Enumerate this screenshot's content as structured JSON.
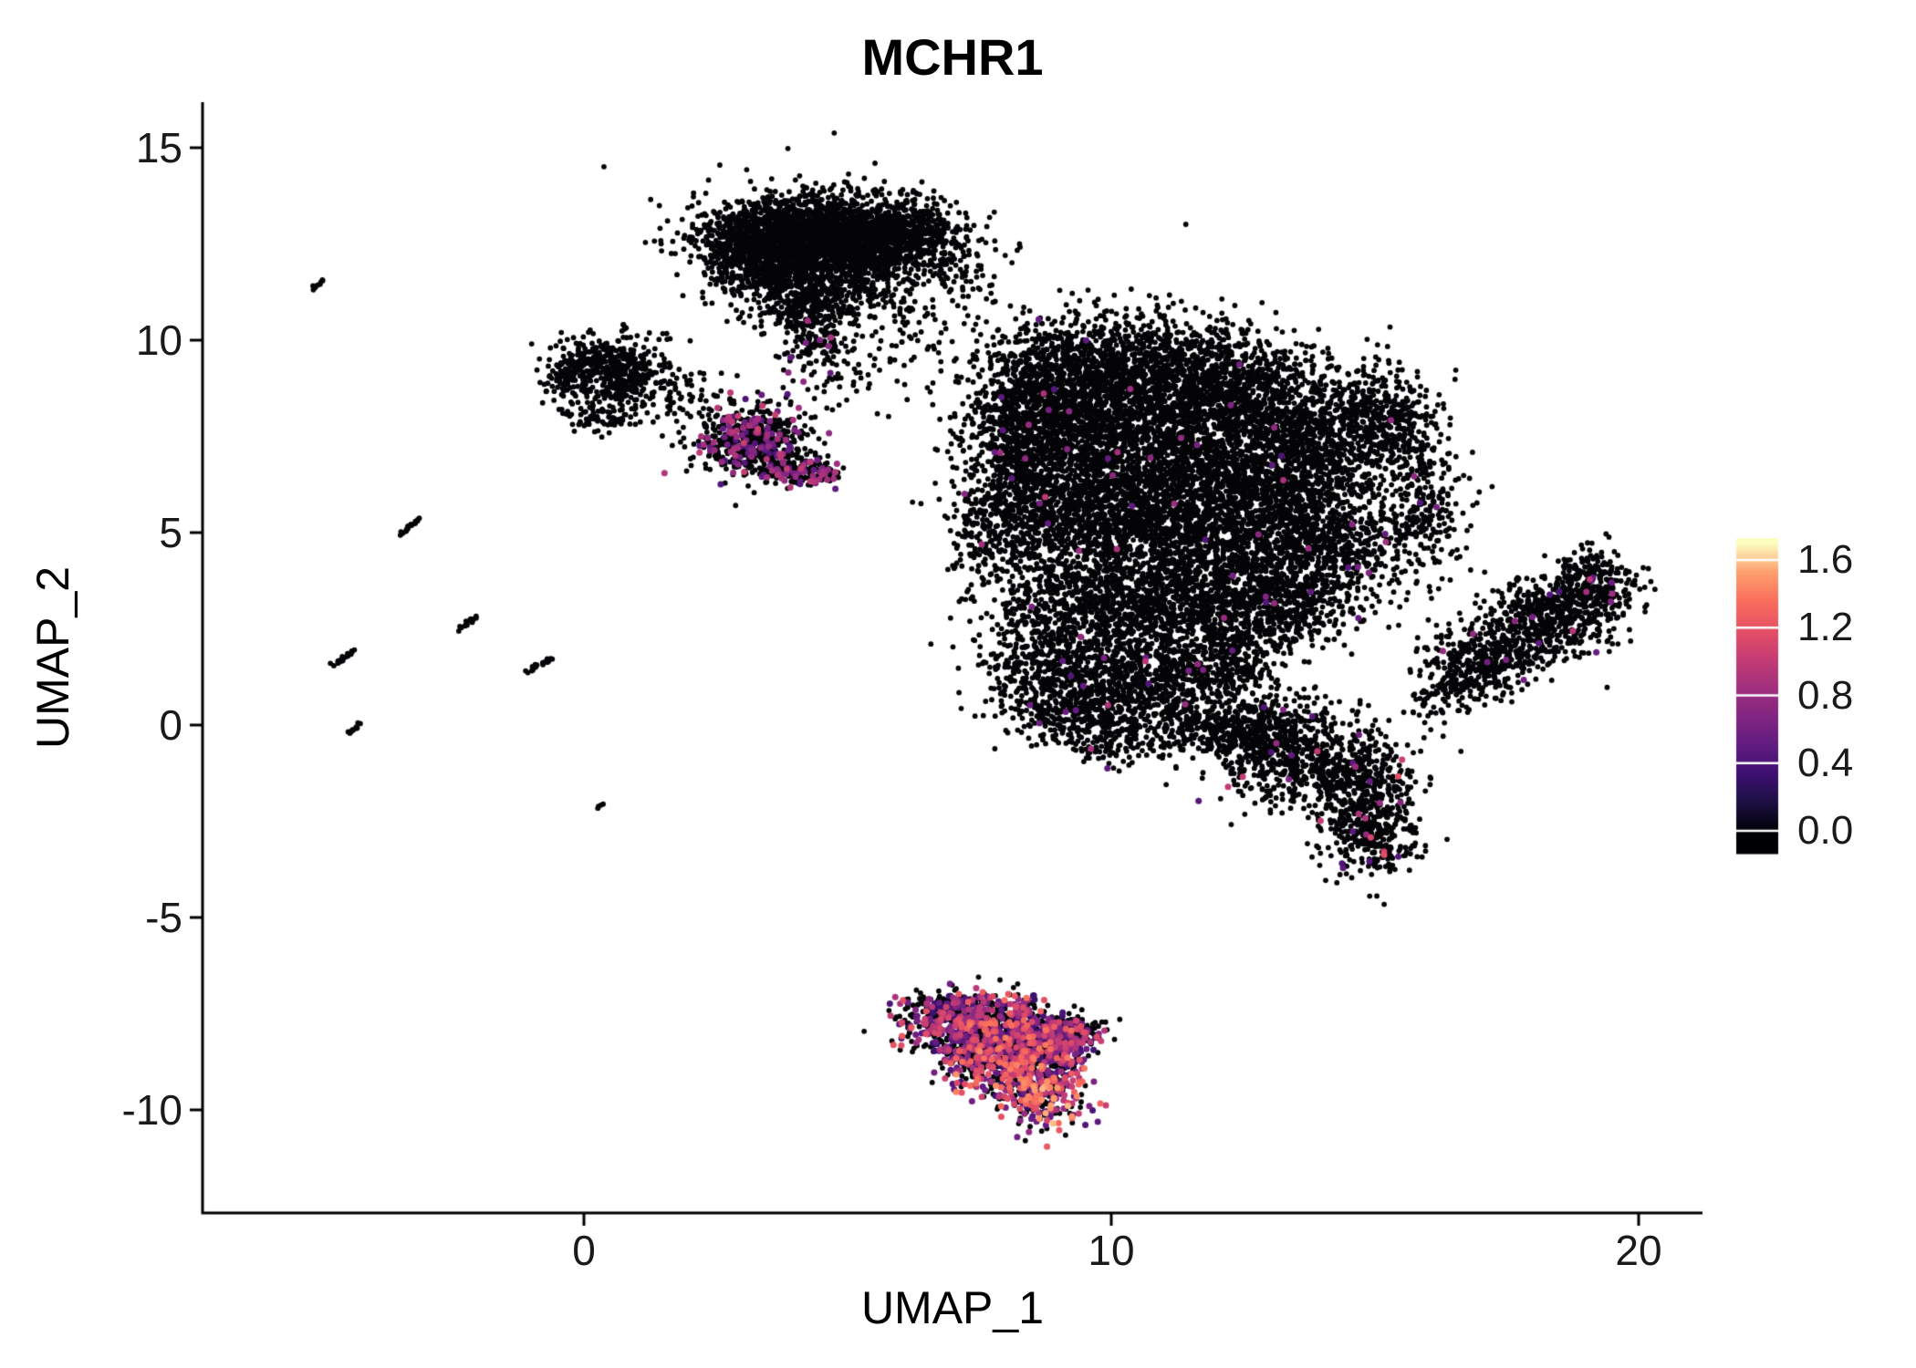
{
  "chart_data": {
    "type": "scatter",
    "title": "MCHR1",
    "xlabel": "UMAP_1",
    "ylabel": "UMAP_2",
    "xlim": [
      -7.2,
      21.3
    ],
    "ylim": [
      -12.7,
      16.1
    ],
    "grid": false,
    "xticks": [
      {
        "value": 0,
        "label": "0"
      },
      {
        "value": 10,
        "label": "10"
      },
      {
        "value": 20,
        "label": "20"
      }
    ],
    "yticks": [
      {
        "value": 15,
        "label": "15"
      },
      {
        "value": 10,
        "label": "10"
      },
      {
        "value": 5,
        "label": "5"
      },
      {
        "value": 0,
        "label": "0"
      },
      {
        "value": -5,
        "label": "-5"
      },
      {
        "value": -10,
        "label": "-10"
      }
    ],
    "colorbar": {
      "position": "right",
      "vmin": 0.0,
      "vmax": 1.7,
      "ticks": [
        {
          "value": 1.6,
          "label": "1.6"
        },
        {
          "value": 1.2,
          "label": "1.2"
        },
        {
          "value": 0.8,
          "label": "0.8"
        },
        {
          "value": 0.4,
          "label": "0.4"
        },
        {
          "value": 0.0,
          "label": "0.0"
        }
      ],
      "colormap": "magma",
      "colormap_stops": [
        [
          0.0,
          0,
          0,
          4
        ],
        [
          0.1,
          28,
          16,
          68
        ],
        [
          0.2,
          63,
          15,
          114
        ],
        [
          0.3,
          98,
          27,
          128
        ],
        [
          0.4,
          130,
          37,
          129
        ],
        [
          0.5,
          162,
          48,
          126
        ],
        [
          0.6,
          197,
          60,
          116
        ],
        [
          0.7,
          229,
          80,
          100
        ],
        [
          0.8,
          249,
          110,
          92
        ],
        [
          0.9,
          254,
          159,
          109
        ],
        [
          1.0,
          252,
          253,
          191
        ]
      ]
    },
    "seed": 12345,
    "cluster_fields": [
      "cx",
      "cy",
      "sx",
      "sy",
      "n",
      "colored_frac",
      "vmin",
      "vmax"
    ],
    "clusters": [
      [
        4.2,
        12.8,
        0.95,
        0.5,
        1500,
        0,
        0,
        0
      ],
      [
        5.6,
        12.5,
        0.6,
        0.55,
        700,
        0,
        0,
        0
      ],
      [
        3.3,
        12.2,
        0.55,
        0.5,
        500,
        0,
        0,
        0
      ],
      [
        4.4,
        11.6,
        0.8,
        0.45,
        500,
        0,
        0,
        0
      ],
      [
        4.2,
        10.85,
        0.5,
        0.35,
        200,
        0,
        0,
        0
      ],
      [
        6.3,
        12.9,
        0.35,
        0.35,
        150,
        0,
        0,
        0
      ],
      [
        4.6,
        12.3,
        1.3,
        0.95,
        260,
        0,
        0,
        0
      ],
      [
        7.0,
        12.2,
        0.5,
        0.6,
        90,
        0,
        0,
        0
      ],
      [
        4.35,
        9.9,
        0.3,
        0.5,
        130,
        0.03,
        0.5,
        0.9
      ],
      [
        6.3,
        10.4,
        0.7,
        0.6,
        70,
        0,
        0,
        0
      ],
      [
        5.3,
        9.2,
        0.7,
        0.5,
        45,
        0,
        0,
        0
      ],
      [
        0.4,
        9.5,
        0.5,
        0.35,
        300,
        0,
        0,
        0
      ],
      [
        0.9,
        8.9,
        0.45,
        0.3,
        180,
        0,
        0,
        0
      ],
      [
        -0.2,
        8.9,
        0.25,
        0.3,
        100,
        0,
        0,
        0
      ],
      [
        0.45,
        8.0,
        0.4,
        0.25,
        90,
        0,
        0,
        0
      ],
      [
        2.1,
        8.5,
        0.4,
        0.35,
        50,
        0,
        0,
        0
      ],
      [
        3.2,
        7.4,
        0.55,
        0.45,
        600,
        0.2,
        0.4,
        1.05
      ],
      [
        4.0,
        6.7,
        0.35,
        0.25,
        150,
        0.22,
        0.4,
        1.0
      ],
      [
        4.5,
        6.55,
        0.18,
        0.12,
        50,
        0.28,
        0.5,
        0.95
      ],
      [
        9.0,
        9.0,
        0.8,
        0.8,
        800,
        0.004,
        0.4,
        0.9
      ],
      [
        10.6,
        9.2,
        1.0,
        0.7,
        1000,
        0.003,
        0.4,
        0.9
      ],
      [
        12.3,
        8.6,
        0.9,
        0.8,
        900,
        0.003,
        0.4,
        0.9
      ],
      [
        13.9,
        7.6,
        0.7,
        0.8,
        600,
        0.004,
        0.4,
        0.9
      ],
      [
        15.2,
        7.8,
        0.5,
        0.7,
        350,
        0.004,
        0.4,
        0.9
      ],
      [
        15.9,
        5.6,
        0.45,
        1.1,
        300,
        0.006,
        0.4,
        0.9
      ],
      [
        8.4,
        7.3,
        0.6,
        0.9,
        600,
        0.005,
        0.4,
        0.9
      ],
      [
        9.9,
        7.2,
        1.0,
        0.9,
        1000,
        0.003,
        0.4,
        0.9
      ],
      [
        11.7,
        6.7,
        1.1,
        0.9,
        1000,
        0.003,
        0.4,
        0.9
      ],
      [
        13.4,
        5.9,
        0.8,
        0.8,
        600,
        0.004,
        0.4,
        0.9
      ],
      [
        8.6,
        5.4,
        0.7,
        0.8,
        550,
        0.006,
        0.4,
        1.0
      ],
      [
        10.4,
        5.2,
        1.0,
        0.8,
        900,
        0.004,
        0.4,
        0.9
      ],
      [
        12.3,
        4.6,
        1.0,
        0.8,
        800,
        0.004,
        0.4,
        0.9
      ],
      [
        14.3,
        4.6,
        0.6,
        0.7,
        400,
        0.005,
        0.4,
        0.9
      ],
      [
        9.5,
        3.2,
        0.9,
        0.7,
        650,
        0.006,
        0.4,
        0.9
      ],
      [
        11.4,
        3.0,
        0.9,
        0.7,
        650,
        0.005,
        0.4,
        0.9
      ],
      [
        13.2,
        3.1,
        0.7,
        0.6,
        450,
        0.006,
        0.4,
        0.9
      ],
      [
        8.8,
        1.6,
        0.7,
        0.6,
        400,
        0.012,
        0.4,
        1.0
      ],
      [
        10.4,
        1.2,
        0.8,
        0.6,
        450,
        0.012,
        0.4,
        1.0
      ],
      [
        12.0,
        1.4,
        0.7,
        0.6,
        400,
        0.01,
        0.4,
        0.9
      ],
      [
        9.3,
        0.35,
        0.7,
        0.4,
        300,
        0.02,
        0.4,
        1.0
      ],
      [
        7.6,
        5.0,
        0.3,
        0.8,
        120,
        0.02,
        0.5,
        0.9
      ],
      [
        10.0,
        -0.55,
        0.5,
        0.3,
        100,
        0.02,
        0.4,
        0.9
      ],
      [
        11.3,
        0.1,
        0.6,
        0.4,
        200,
        0.01,
        0.4,
        0.9
      ],
      [
        12.6,
        -0.3,
        0.5,
        0.5,
        250,
        0.015,
        0.4,
        0.9
      ],
      [
        13.5,
        -0.75,
        0.8,
        0.7,
        600,
        0.02,
        0.4,
        1.1
      ],
      [
        14.8,
        -1.6,
        0.5,
        0.6,
        350,
        0.025,
        0.4,
        1.2
      ],
      [
        14.9,
        -2.9,
        0.45,
        0.55,
        280,
        0.03,
        0.4,
        1.2
      ],
      [
        17.2,
        1.8,
        0.55,
        0.45,
        350,
        0.01,
        0.4,
        0.9
      ],
      [
        18.3,
        2.8,
        0.6,
        0.5,
        450,
        0.015,
        0.4,
        1.0
      ],
      [
        19.1,
        3.7,
        0.4,
        0.45,
        300,
        0.02,
        0.4,
        1.0
      ],
      [
        16.5,
        1.1,
        0.3,
        0.3,
        100,
        0.01,
        0.4,
        0.9
      ],
      [
        16.2,
        0.6,
        0.4,
        0.3,
        35,
        0,
        0,
        0
      ],
      [
        7.0,
        -7.7,
        0.55,
        0.4,
        350,
        0.5,
        0.3,
        1.3
      ],
      [
        8.0,
        -7.9,
        0.6,
        0.45,
        400,
        0.5,
        0.3,
        1.4
      ],
      [
        8.9,
        -8.3,
        0.4,
        0.35,
        250,
        0.5,
        0.3,
        1.3
      ],
      [
        9.3,
        -8.0,
        0.25,
        0.25,
        100,
        0.4,
        0.3,
        1.2
      ],
      [
        8.1,
        -8.9,
        0.5,
        0.4,
        300,
        0.55,
        0.3,
        1.5
      ],
      [
        8.7,
        -9.6,
        0.4,
        0.45,
        280,
        0.6,
        0.4,
        1.6
      ],
      [
        7.3,
        -8.6,
        0.35,
        0.3,
        150,
        0.5,
        0.3,
        1.3
      ],
      [
        7.1,
        -7.25,
        0.6,
        0.12,
        80,
        0.25,
        0.3,
        1.0
      ]
    ],
    "streak_fields": [
      "cx",
      "cy",
      "len",
      "angle_deg",
      "n"
    ],
    "streaks": [
      [
        -5.05,
        11.45,
        0.3,
        45,
        9
      ],
      [
        -3.3,
        5.15,
        0.55,
        45,
        18
      ],
      [
        -2.2,
        2.65,
        0.5,
        45,
        16
      ],
      [
        -4.55,
        1.75,
        0.55,
        45,
        18
      ],
      [
        -0.85,
        1.55,
        0.6,
        40,
        20
      ],
      [
        -4.35,
        -0.1,
        0.3,
        45,
        10
      ],
      [
        0.3,
        -2.1,
        0.1,
        45,
        4
      ]
    ]
  }
}
